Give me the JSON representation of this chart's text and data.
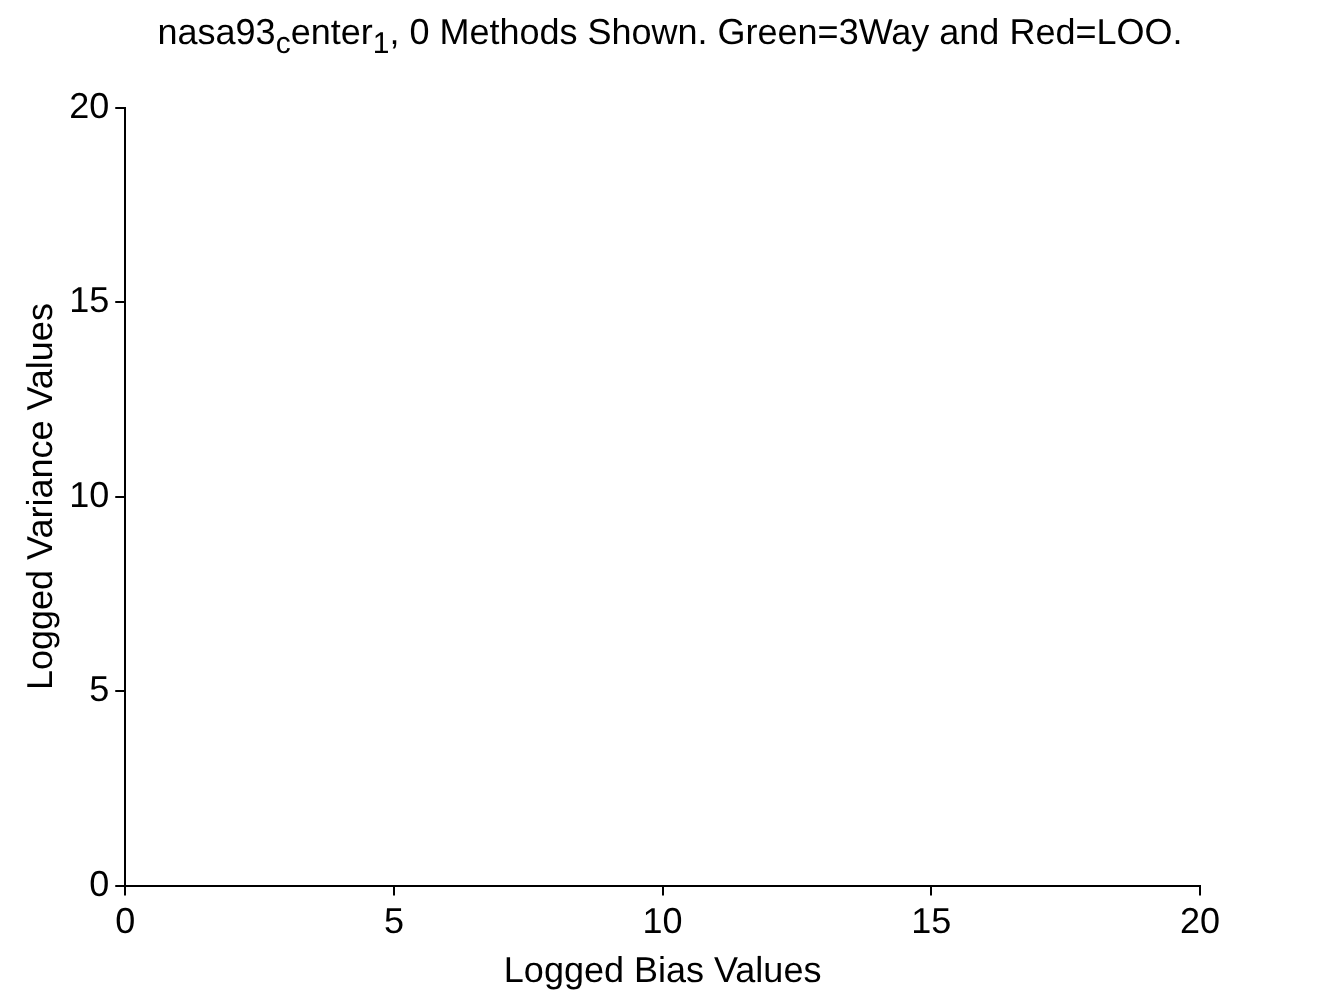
{
  "chart_data": {
    "type": "scatter",
    "title": "nasa93$_{c}$enter$_{1}$, 0 Methods Shown. Green=3Way and Red=LOO.",
    "xlabel": "Logged Bias Values",
    "ylabel": "Logged Variance Values",
    "xlim": [
      0,
      20
    ],
    "ylim": [
      0,
      20
    ],
    "xticks": [
      0,
      5,
      10,
      15,
      20
    ],
    "yticks": [
      0,
      5,
      10,
      15,
      20
    ],
    "legend": false
  }
}
